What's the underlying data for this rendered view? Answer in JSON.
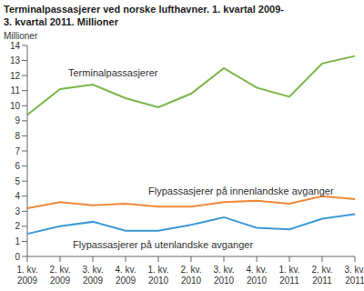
{
  "chart_data": {
    "type": "line",
    "title": [
      "Terminalpassasjerer ved norske lufthavner. 1. kvartal 2009-",
      "3. kvartal 2011. Millioner"
    ],
    "y_label": "Millioner",
    "categories": [
      "1. kv. 2009",
      "2. kv. 2009",
      "3. kv. 2009",
      "4. kv. 2009",
      "1. kv. 2010",
      "2. kv. 2010",
      "3. kv. 2010",
      "4. kv. 2010",
      "1. kv. 2011",
      "2. kv. 2011",
      "3. kv. 2011"
    ],
    "series": [
      {
        "name": "Terminalpassasjerer",
        "color": "#7ab648",
        "values": [
          9.4,
          11.1,
          11.4,
          10.5,
          9.9,
          10.8,
          12.5,
          11.2,
          10.6,
          12.8,
          13.3
        ]
      },
      {
        "name": "Flypassasjerer på innenlandske avganger",
        "color": "#f0883a",
        "values": [
          3.2,
          3.6,
          3.4,
          3.5,
          3.3,
          3.3,
          3.6,
          3.7,
          3.5,
          4.0,
          3.8
        ]
      },
      {
        "name": "Flypassasjerer på utenlandske avganger",
        "color": "#3b9ad6",
        "values": [
          1.5,
          2.0,
          2.3,
          1.7,
          1.7,
          2.1,
          2.6,
          1.9,
          1.8,
          2.5,
          2.8
        ]
      }
    ],
    "ylim": [
      0,
      14
    ],
    "yticks": [
      0,
      1,
      2,
      3,
      4,
      5,
      6,
      7,
      8,
      9,
      10,
      11,
      12,
      13,
      14
    ],
    "grid": false
  }
}
